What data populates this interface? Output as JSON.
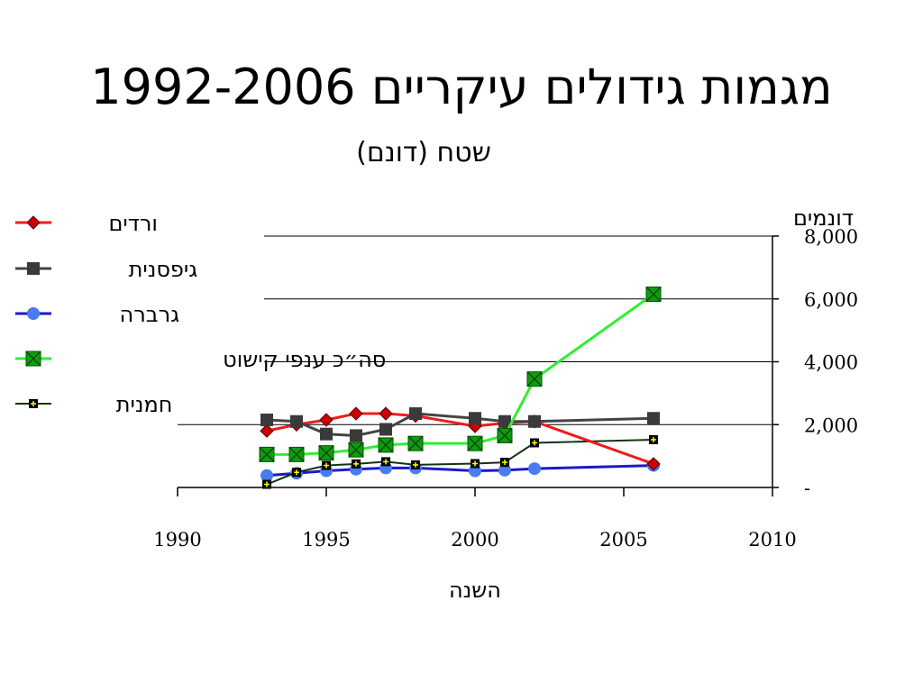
{
  "slide": {
    "title": "מגמות גידולים עיקריים 1992-2006"
  },
  "chart_data": {
    "type": "line",
    "title": "מגמות גידולים עיקריים 1992-2006",
    "subtitle": "שטח (דונם)",
    "xlabel": "השנה",
    "ylabel": "דונמים",
    "xlim": [
      1990,
      2010
    ],
    "ylim": [
      0,
      8000
    ],
    "x_ticks": [
      1990,
      1995,
      2000,
      2005,
      2010
    ],
    "y_ticks": [
      0,
      2000,
      4000,
      6000,
      8000
    ],
    "y_tick_labels": [
      "-",
      "2,000",
      "4,000",
      "6,000",
      "8,000"
    ],
    "y_axis_side": "right",
    "grid": "horizontal",
    "legend_position": "top-left",
    "series": [
      {
        "name": "ורדים",
        "color": "#ee1c1c",
        "marker": "diamond",
        "marker_color": "#cc0000",
        "x": [
          1993,
          1994,
          1995,
          1996,
          1997,
          1998,
          2000,
          2001,
          2002,
          2006
        ],
        "y": [
          1800,
          2000,
          2150,
          2350,
          2350,
          2280,
          1950,
          2050,
          2100,
          750
        ]
      },
      {
        "name": "גיפסנית",
        "color": "#444444",
        "marker": "square",
        "marker_color": "#3a3a3a",
        "x": [
          1993,
          1994,
          1995,
          1996,
          1997,
          1998,
          2000,
          2001,
          2002,
          2006
        ],
        "y": [
          2150,
          2100,
          1700,
          1650,
          1850,
          2350,
          2200,
          2100,
          2100,
          2200
        ]
      },
      {
        "name": "גרברה",
        "color": "#1a1acc",
        "marker": "circle",
        "marker_color": "#4a7bf0",
        "x": [
          1993,
          1994,
          1995,
          1996,
          1997,
          1998,
          2000,
          2001,
          2002,
          2006
        ],
        "y": [
          380,
          450,
          530,
          580,
          620,
          620,
          530,
          550,
          600,
          700
        ]
      },
      {
        "name": "סה״כ ענפי קישוט",
        "color": "#33ee33",
        "marker": "square-x",
        "marker_color": "#119911",
        "x": [
          1993,
          1994,
          1995,
          1996,
          1997,
          1998,
          2000,
          2001,
          2002,
          2006
        ],
        "y": [
          1050,
          1050,
          1100,
          1200,
          1350,
          1400,
          1400,
          1650,
          3450,
          6150
        ]
      },
      {
        "name": "חמנית",
        "color": "#113311",
        "marker": "plus-square",
        "marker_color": "#000000",
        "x": [
          1993,
          1994,
          1995,
          1996,
          1997,
          1998,
          2000,
          2001,
          2002,
          2006
        ],
        "y": [
          100,
          480,
          700,
          750,
          820,
          720,
          760,
          800,
          1420,
          1520
        ]
      }
    ]
  }
}
